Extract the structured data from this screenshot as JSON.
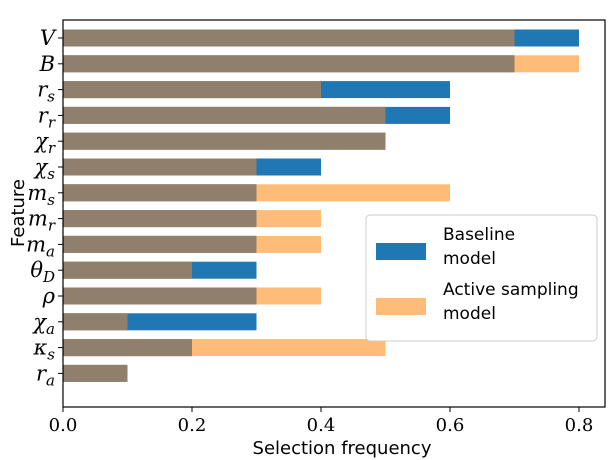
{
  "chart_data": {
    "type": "bar",
    "orientation": "horizontal",
    "title": "",
    "xlabel": "Selection frequency",
    "ylabel": "Feature",
    "xlim": [
      0.0,
      0.82
    ],
    "xticks": [
      "0.0",
      "0.2",
      "0.4",
      "0.6",
      "0.8"
    ],
    "xtick_values": [
      0.0,
      0.2,
      0.4,
      0.6,
      0.8
    ],
    "categories": [
      {
        "base": "V",
        "sub": ""
      },
      {
        "base": "B",
        "sub": ""
      },
      {
        "base": "r",
        "sub": "s"
      },
      {
        "base": "r",
        "sub": "r"
      },
      {
        "base": "χ",
        "sub": "r"
      },
      {
        "base": "χ",
        "sub": "s"
      },
      {
        "base": "m",
        "sub": "s"
      },
      {
        "base": "m",
        "sub": "r"
      },
      {
        "base": "m",
        "sub": "a"
      },
      {
        "base": "θ",
        "sub": "D"
      },
      {
        "base": "ρ",
        "sub": ""
      },
      {
        "base": "χ",
        "sub": "a"
      },
      {
        "base": "κ",
        "sub": "s"
      },
      {
        "base": "r",
        "sub": "a"
      }
    ],
    "series": [
      {
        "name": "Baseline model",
        "name_lines": [
          "Baseline",
          "model"
        ],
        "color": "#1f77b4",
        "values": [
          0.8,
          0.7,
          0.6,
          0.6,
          0.5,
          0.4,
          0.3,
          0.3,
          0.3,
          0.3,
          0.3,
          0.3,
          0.2,
          0.1
        ]
      },
      {
        "name": "Active sampling model",
        "name_lines": [
          "Active sampling",
          "model"
        ],
        "color": "#ffbb78",
        "values": [
          0.7,
          0.8,
          0.4,
          0.5,
          0.5,
          0.3,
          0.6,
          0.4,
          0.4,
          0.2,
          0.4,
          0.1,
          0.5,
          0.1
        ]
      }
    ],
    "overlap_color": "#8f7f6c",
    "legend_position": "center-right",
    "grid": false
  }
}
